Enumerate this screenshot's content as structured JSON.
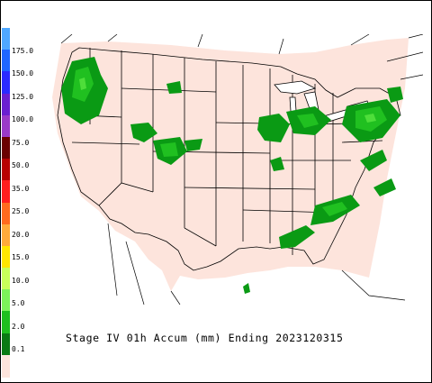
{
  "caption": "Stage IV 01h Accum (mm) Ending 2023120315",
  "colors": {
    "land": "#fde4dc",
    "border": "#000000",
    "rain_light": "#0a9a14",
    "rain_heavy": "#20c020",
    "rain_moderate": "#4ede3a"
  },
  "legend": {
    "labels": [
      "175.0",
      "150.0",
      "125.0",
      "100.0",
      "75.0",
      "50.0",
      "35.0",
      "25.0",
      "20.0",
      "15.0",
      "10.0",
      "5.0",
      "2.0",
      "0.1"
    ],
    "colors": [
      "#4fa8ff",
      "#1f66ff",
      "#2a2aff",
      "#6a1fd0",
      "#9a3ac8",
      "#6a0000",
      "#b80000",
      "#ff1e1e",
      "#ff6a1e",
      "#ffaa3a",
      "#ffe600",
      "#c8ff5a",
      "#7cf25a",
      "#1ebf1e",
      "#0a7a14",
      "#fde4dc"
    ]
  }
}
